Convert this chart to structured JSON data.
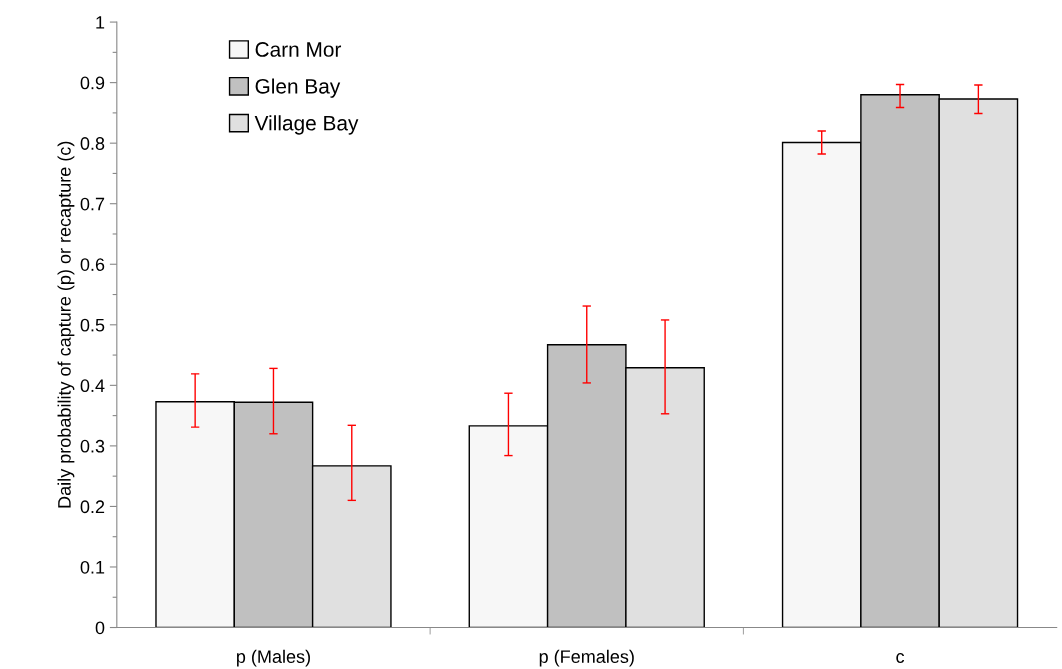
{
  "chart_data": {
    "type": "bar",
    "ylabel": "Daily probability of capture (p) or recapture (c)",
    "categories": [
      "p (Males)",
      "p (Females)",
      "c"
    ],
    "series": [
      {
        "name": "Carn Mor",
        "color": "#f7f7f7",
        "values": [
          0.373,
          0.333,
          0.801
        ],
        "errors": [
          [
            0.331,
            0.419
          ],
          [
            0.284,
            0.387
          ],
          [
            0.782,
            0.82
          ]
        ]
      },
      {
        "name": "Glen Bay",
        "color": "#c0c0c0",
        "values": [
          0.372,
          0.467,
          0.88
        ],
        "errors": [
          [
            0.32,
            0.428
          ],
          [
            0.404,
            0.531
          ],
          [
            0.859,
            0.897
          ]
        ]
      },
      {
        "name": "Village Bay",
        "color": "#e0e0e0",
        "values": [
          0.267,
          0.429,
          0.873
        ],
        "errors": [
          [
            0.21,
            0.334
          ],
          [
            0.353,
            0.508
          ],
          [
            0.849,
            0.896
          ]
        ]
      }
    ],
    "ylim": [
      0,
      1
    ],
    "yticks": [
      0,
      {
        "value": 0.05,
        "label": null
      },
      0.1,
      {
        "value": 0.15,
        "label": null
      },
      0.2,
      {
        "value": 0.25,
        "label": null
      },
      0.3,
      {
        "value": 0.35,
        "label": null
      },
      0.4,
      {
        "value": 0.45,
        "label": null
      },
      0.5,
      {
        "value": 0.55,
        "label": null
      },
      0.6,
      {
        "value": 0.65,
        "label": null
      },
      0.7,
      {
        "value": 0.75,
        "label": null
      },
      0.8,
      {
        "value": 0.85,
        "label": null
      },
      0.9,
      {
        "value": 0.95,
        "label": null
      },
      1
    ],
    "grid": false,
    "legend": "top left"
  }
}
